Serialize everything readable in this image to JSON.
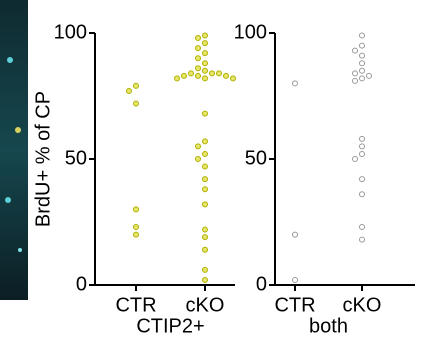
{
  "chart_data": [
    {
      "type": "strip",
      "y_label": "BrdU+ % of CP",
      "x_label": "CTIP2+",
      "categories": [
        "CTR",
        "cKO"
      ],
      "values": [
        [
          79,
          77,
          72,
          30,
          23,
          20
        ],
        [
          99,
          98,
          96,
          94,
          92,
          90,
          88,
          86,
          85,
          84,
          84,
          84,
          83,
          83,
          83,
          82,
          82,
          82,
          68,
          57,
          55,
          52,
          50,
          47,
          42,
          38,
          32,
          22,
          19,
          14,
          6,
          2
        ]
      ],
      "color": "#b0b000",
      "fill": "#e6e66a",
      "ylim": [
        0,
        100
      ],
      "yticks": [
        0,
        50,
        100
      ]
    },
    {
      "type": "strip",
      "x_label": "both",
      "categories": [
        "CTR",
        "cKO"
      ],
      "values": [
        [
          80,
          20,
          2
        ],
        [
          99,
          95,
          93,
          91,
          88,
          85,
          84,
          83,
          82,
          81,
          58,
          55,
          52,
          50,
          42,
          36,
          23,
          18
        ]
      ],
      "color": "#999999",
      "fill": "#ffffff",
      "ylim": [
        0,
        100
      ],
      "yticks": [
        0,
        50,
        100
      ]
    }
  ]
}
